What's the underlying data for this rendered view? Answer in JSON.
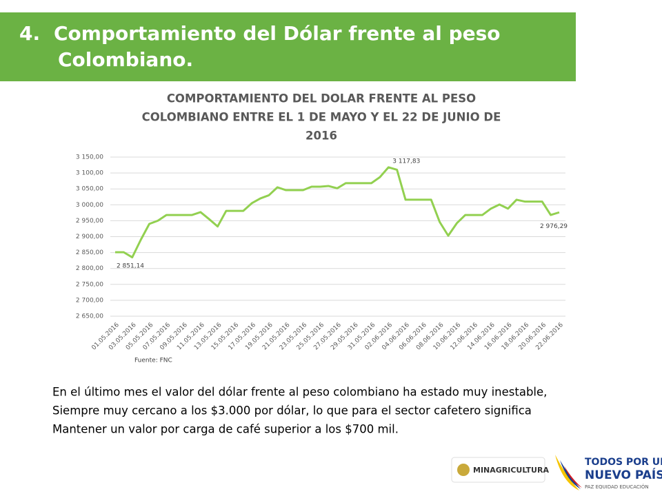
{
  "header": {
    "number": "4.",
    "lines": [
      "Comportamiento del Dólar frente al peso",
      "Colombiano."
    ]
  },
  "chart_data": {
    "type": "line",
    "title": [
      "COMPORTAMIENTO DEL DOLAR FRENTE AL PESO",
      "COLOMBIANO ENTRE EL 1 DE MAYO Y EL 22 DE JUNIO DE",
      "2016"
    ],
    "categories": [
      "01.05.2016",
      null,
      "03.05.2016",
      null,
      "05.05.2016",
      null,
      "07.05.2016",
      null,
      "09.05.2016",
      null,
      "11.05.2016",
      null,
      "13.05.2016",
      null,
      "15.05.2016",
      null,
      "17.05.2016",
      null,
      "19.05.2016",
      null,
      "21.05.2016",
      null,
      "23.05.2016",
      null,
      "25.05.2016",
      null,
      "27.05.2016",
      null,
      "29.05.2016",
      null,
      "31.05.2016",
      null,
      "02.06.2016",
      null,
      "04.06.2016",
      null,
      "06.06.2016",
      null,
      "08.06.2016",
      null,
      "10.06.2016",
      null,
      "12.06.2016",
      null,
      "14.06.2016",
      null,
      "16.06.2016",
      null,
      "18.06.2016",
      null,
      "20.06.2016",
      null,
      "22.06.2016"
    ],
    "series": [
      {
        "name": "Dólar",
        "color": "#92d050",
        "values": [
          2851.14,
          2851,
          2835,
          2890,
          2940,
          2950,
          2968,
          2968,
          2968,
          2968,
          2977,
          2955,
          2932,
          2981,
          2981,
          2981,
          3005,
          3020,
          3030,
          3055,
          3046,
          3046,
          3046,
          3057,
          3057,
          3059,
          3052,
          3068,
          3068,
          3068,
          3068,
          3087,
          3117.83,
          3110,
          3016,
          3016,
          3016,
          3016,
          2946,
          2903,
          2942,
          2968,
          2968,
          2968,
          2988,
          3001,
          2988,
          3016,
          3010,
          3010,
          3010,
          2968,
          2976.29
        ],
        "value_labels": [
          "2 851,14",
          null,
          null,
          null,
          null,
          null,
          null,
          null,
          null,
          null,
          null,
          null,
          null,
          null,
          null,
          null,
          null,
          null,
          null,
          null,
          null,
          null,
          null,
          null,
          null,
          null,
          null,
          null,
          null,
          null,
          null,
          null,
          "3 117,83",
          null,
          null,
          null,
          null,
          null,
          null,
          null,
          null,
          null,
          null,
          null,
          null,
          null,
          null,
          null,
          null,
          null,
          null,
          null,
          "2 976,29"
        ]
      }
    ],
    "ylim": [
      2650,
      3150
    ],
    "yticks": [
      {
        "value": 2650,
        "label": "2 650,00"
      },
      {
        "value": 2700,
        "label": "2 700,00"
      },
      {
        "value": 2750,
        "label": "2 750,00"
      },
      {
        "value": 2800,
        "label": "2 800,00"
      },
      {
        "value": 2850,
        "label": "2 850,00"
      },
      {
        "value": 2900,
        "label": "2 900,00"
      },
      {
        "value": 2950,
        "label": "2 950,00"
      },
      {
        "value": 3000,
        "label": "3 000,00"
      },
      {
        "value": 3050,
        "label": "3 050,00"
      },
      {
        "value": 3100,
        "label": "3 100,00"
      },
      {
        "value": 3150,
        "label": "3 150,00"
      }
    ],
    "grid": true,
    "source": "Fuente: FNC"
  },
  "body": [
    "En el último mes el valor del dólar frente al peso colombiano ha estado muy inestable,",
    "Siempre muy cercano a los $3.000 por dólar, lo que para el sector cafetero significa",
    "Mantener un valor por carga de café superior a los $700 mil."
  ],
  "footer": {
    "ministry": "MINAGRICULTURA",
    "slogan1": "TODOS POR UN",
    "slogan2": "NUEVO PAÍS",
    "slogan3": "PAZ  EQUIDAD  EDUCACIÓN"
  }
}
